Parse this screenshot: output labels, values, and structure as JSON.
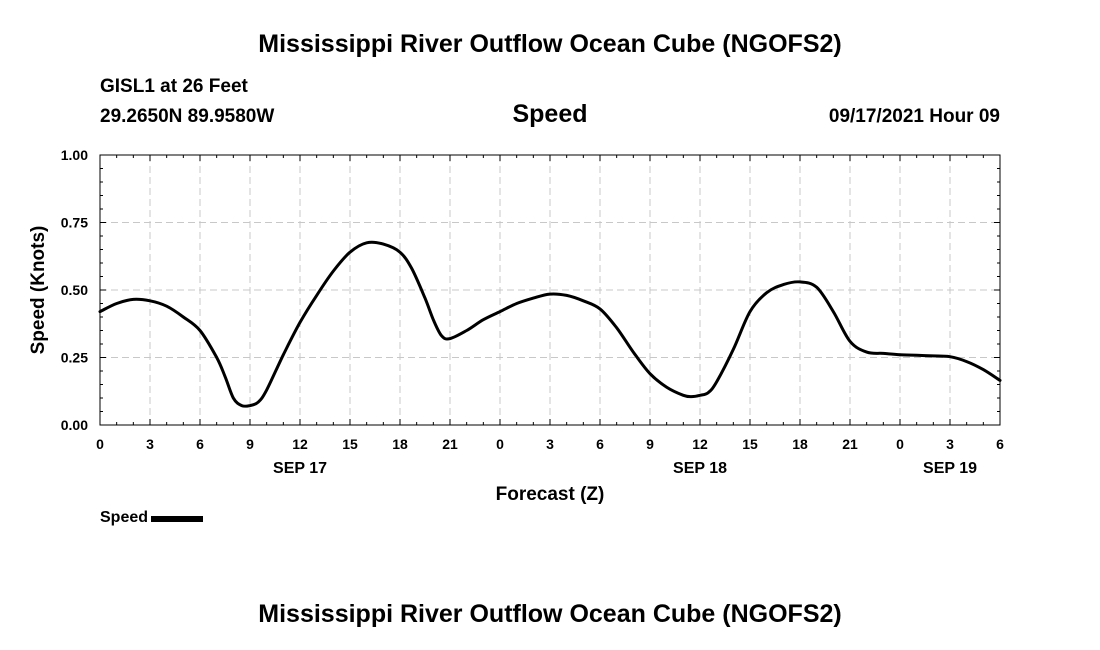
{
  "header": {
    "title": "Mississippi River Outflow Ocean Cube (NGOFS2)",
    "station": "GISL1 at 26 Feet",
    "coords": "29.2650N  89.9580W",
    "variable": "Speed",
    "datetime": "09/17/2021 Hour 09"
  },
  "footer": {
    "title": "Mississippi River Outflow Ocean Cube (NGOFS2)"
  },
  "legend": {
    "label": "Speed",
    "color": "#000000"
  },
  "chart_data": {
    "type": "line",
    "title": "Speed",
    "xlabel": "Forecast (Z)",
    "ylabel": "Speed (Knots)",
    "x_unit": "hours from SEP 17 00Z",
    "xlim": [
      0,
      54
    ],
    "ylim": [
      0,
      1
    ],
    "grid": true,
    "x_tick_values": [
      0,
      3,
      6,
      9,
      12,
      15,
      18,
      21,
      24,
      27,
      30,
      33,
      36,
      39,
      42,
      45,
      48,
      51,
      54
    ],
    "x_tick_labels": [
      "0",
      "3",
      "6",
      "9",
      "12",
      "15",
      "18",
      "21",
      "0",
      "3",
      "6",
      "9",
      "12",
      "15",
      "18",
      "21",
      "0",
      "3",
      "6"
    ],
    "date_labels": [
      {
        "x": 12,
        "text": "SEP 17"
      },
      {
        "x": 36,
        "text": "SEP 18"
      },
      {
        "x": 51,
        "text": "SEP 19"
      }
    ],
    "y_tick_values": [
      0,
      0.25,
      0.5,
      0.75,
      1.0
    ],
    "y_tick_labels": [
      "0.00",
      "0.25",
      "0.50",
      "0.75",
      "1.00"
    ],
    "series": [
      {
        "name": "Speed",
        "color": "#000000",
        "x": [
          0,
          1,
          2,
          3,
          4,
          5,
          6,
          7,
          7.5,
          8,
          8.5,
          9,
          9.5,
          10,
          11,
          12,
          13,
          14,
          15,
          16,
          17,
          18,
          18.7,
          19.5,
          20,
          20.5,
          21,
          22,
          23,
          24,
          25,
          26,
          27,
          28,
          29,
          30,
          31,
          32,
          33,
          34,
          35,
          35.5,
          36,
          36.5,
          37,
          38,
          39,
          40,
          41,
          42,
          43,
          44,
          45,
          46,
          47,
          48,
          49,
          50,
          51,
          52,
          53,
          54
        ],
        "y": [
          0.42,
          0.45,
          0.465,
          0.46,
          0.44,
          0.4,
          0.35,
          0.25,
          0.18,
          0.1,
          0.072,
          0.072,
          0.085,
          0.13,
          0.26,
          0.38,
          0.48,
          0.57,
          0.64,
          0.675,
          0.67,
          0.64,
          0.58,
          0.47,
          0.39,
          0.33,
          0.32,
          0.35,
          0.39,
          0.42,
          0.45,
          0.47,
          0.485,
          0.48,
          0.46,
          0.43,
          0.36,
          0.27,
          0.19,
          0.14,
          0.11,
          0.105,
          0.11,
          0.12,
          0.16,
          0.28,
          0.42,
          0.49,
          0.52,
          0.53,
          0.51,
          0.42,
          0.31,
          0.27,
          0.265,
          0.26,
          0.258,
          0.256,
          0.253,
          0.235,
          0.205,
          0.165
        ]
      }
    ]
  }
}
